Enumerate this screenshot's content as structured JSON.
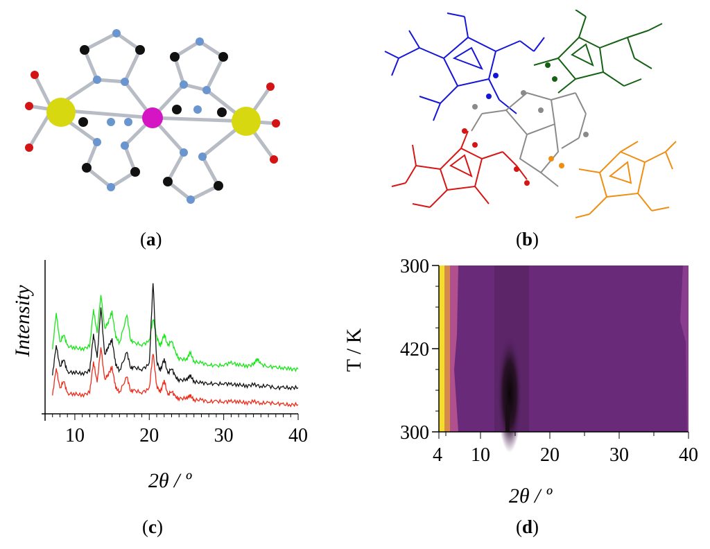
{
  "captions": {
    "a": "a",
    "b": "b",
    "c": "c",
    "d": "d"
  },
  "colors": {
    "atom_blue": "#6a95cf",
    "atom_black": "#111111",
    "atom_red": "#d41414",
    "metal_yellow": "#d8d810",
    "metal_magenta": "#d515c4",
    "bond": "#b0b4bc",
    "mol_blue": "#1515d8",
    "mol_green": "#146014",
    "mol_red": "#d81515",
    "mol_orange": "#ef8e12",
    "mol_gray": "#8a8a8a",
    "xrd_green": "#19e619",
    "xrd_black": "#111111",
    "xrd_red": "#ef2a18"
  },
  "chart_data": [
    {
      "panel": "c",
      "type": "line",
      "xlabel": "2θ / º",
      "ylabel": "Intensity",
      "xlim": [
        6,
        40
      ],
      "xticks": [
        10,
        20,
        30,
        40
      ],
      "series": [
        {
          "color": "#19e619",
          "x": [
            7,
            7.5,
            8,
            8.5,
            9,
            10,
            11,
            12,
            12.5,
            13,
            13.5,
            14,
            14.5,
            15,
            15.5,
            16,
            17,
            17.5,
            18,
            19,
            20,
            20.5,
            21,
            21.5,
            22,
            22.5,
            23,
            23.5,
            24,
            25,
            25.5,
            26,
            27,
            28,
            29,
            30,
            31,
            32,
            33,
            34,
            34.5,
            35,
            36,
            37,
            38,
            39,
            40
          ],
          "y": [
            0.42,
            0.66,
            0.46,
            0.52,
            0.44,
            0.43,
            0.42,
            0.44,
            0.68,
            0.52,
            0.78,
            0.55,
            0.6,
            0.66,
            0.5,
            0.46,
            0.64,
            0.48,
            0.46,
            0.45,
            0.47,
            0.62,
            0.5,
            0.44,
            0.52,
            0.44,
            0.48,
            0.4,
            0.36,
            0.35,
            0.4,
            0.34,
            0.33,
            0.32,
            0.31,
            0.32,
            0.33,
            0.32,
            0.31,
            0.32,
            0.36,
            0.32,
            0.31,
            0.3,
            0.3,
            0.29,
            0.29
          ]
        },
        {
          "color": "#111111",
          "x": [
            7,
            7.5,
            8,
            8.5,
            9,
            10,
            11,
            12,
            12.5,
            13,
            13.5,
            14,
            14.5,
            15,
            15.5,
            16,
            17,
            17.5,
            18,
            19,
            20,
            20.5,
            21,
            21.5,
            22,
            22.5,
            23,
            23.5,
            24,
            25,
            25.5,
            26,
            27,
            28,
            29,
            30,
            31,
            32,
            33,
            34,
            35,
            36,
            37,
            38,
            39,
            40
          ],
          "y": [
            0.25,
            0.45,
            0.3,
            0.36,
            0.27,
            0.27,
            0.26,
            0.28,
            0.52,
            0.36,
            0.7,
            0.38,
            0.44,
            0.48,
            0.32,
            0.28,
            0.4,
            0.3,
            0.3,
            0.29,
            0.32,
            0.86,
            0.34,
            0.28,
            0.36,
            0.26,
            0.3,
            0.24,
            0.22,
            0.22,
            0.25,
            0.21,
            0.2,
            0.2,
            0.19,
            0.2,
            0.19,
            0.19,
            0.18,
            0.19,
            0.18,
            0.18,
            0.17,
            0.17,
            0.17,
            0.17
          ]
        },
        {
          "color": "#ef2a18",
          "x": [
            7,
            7.5,
            8,
            8.5,
            9,
            10,
            11,
            12,
            12.5,
            13,
            13.5,
            14,
            14.5,
            15,
            15.5,
            16,
            17,
            17.5,
            18,
            19,
            20,
            20.5,
            21,
            21.5,
            22,
            22.5,
            23,
            23.5,
            24,
            25,
            25.5,
            26,
            27,
            28,
            29,
            30,
            31,
            32,
            33,
            34,
            35,
            36,
            37,
            38,
            39,
            40
          ],
          "y": [
            0.12,
            0.3,
            0.16,
            0.22,
            0.13,
            0.13,
            0.12,
            0.14,
            0.34,
            0.2,
            0.44,
            0.22,
            0.26,
            0.3,
            0.17,
            0.14,
            0.24,
            0.15,
            0.15,
            0.14,
            0.16,
            0.4,
            0.18,
            0.14,
            0.22,
            0.12,
            0.15,
            0.11,
            0.1,
            0.1,
            0.12,
            0.09,
            0.09,
            0.08,
            0.08,
            0.08,
            0.08,
            0.08,
            0.07,
            0.08,
            0.07,
            0.07,
            0.07,
            0.06,
            0.06,
            0.06
          ]
        }
      ]
    },
    {
      "panel": "d",
      "type": "heatmap",
      "xlabel": "2θ / º",
      "ylabel": "T / K",
      "xlim": [
        4,
        40
      ],
      "xticks": [
        4,
        10,
        20,
        30,
        40
      ],
      "yticks": [
        "300",
        "420",
        "300"
      ],
      "colors": {
        "background": "#6a2a7a",
        "edge_yellow": "#f2de2a",
        "edge_orange": "#d68a4a",
        "edge_pink": "#b0508e",
        "dark": "#1a0e16",
        "mid": "#4a1e52"
      }
    }
  ]
}
